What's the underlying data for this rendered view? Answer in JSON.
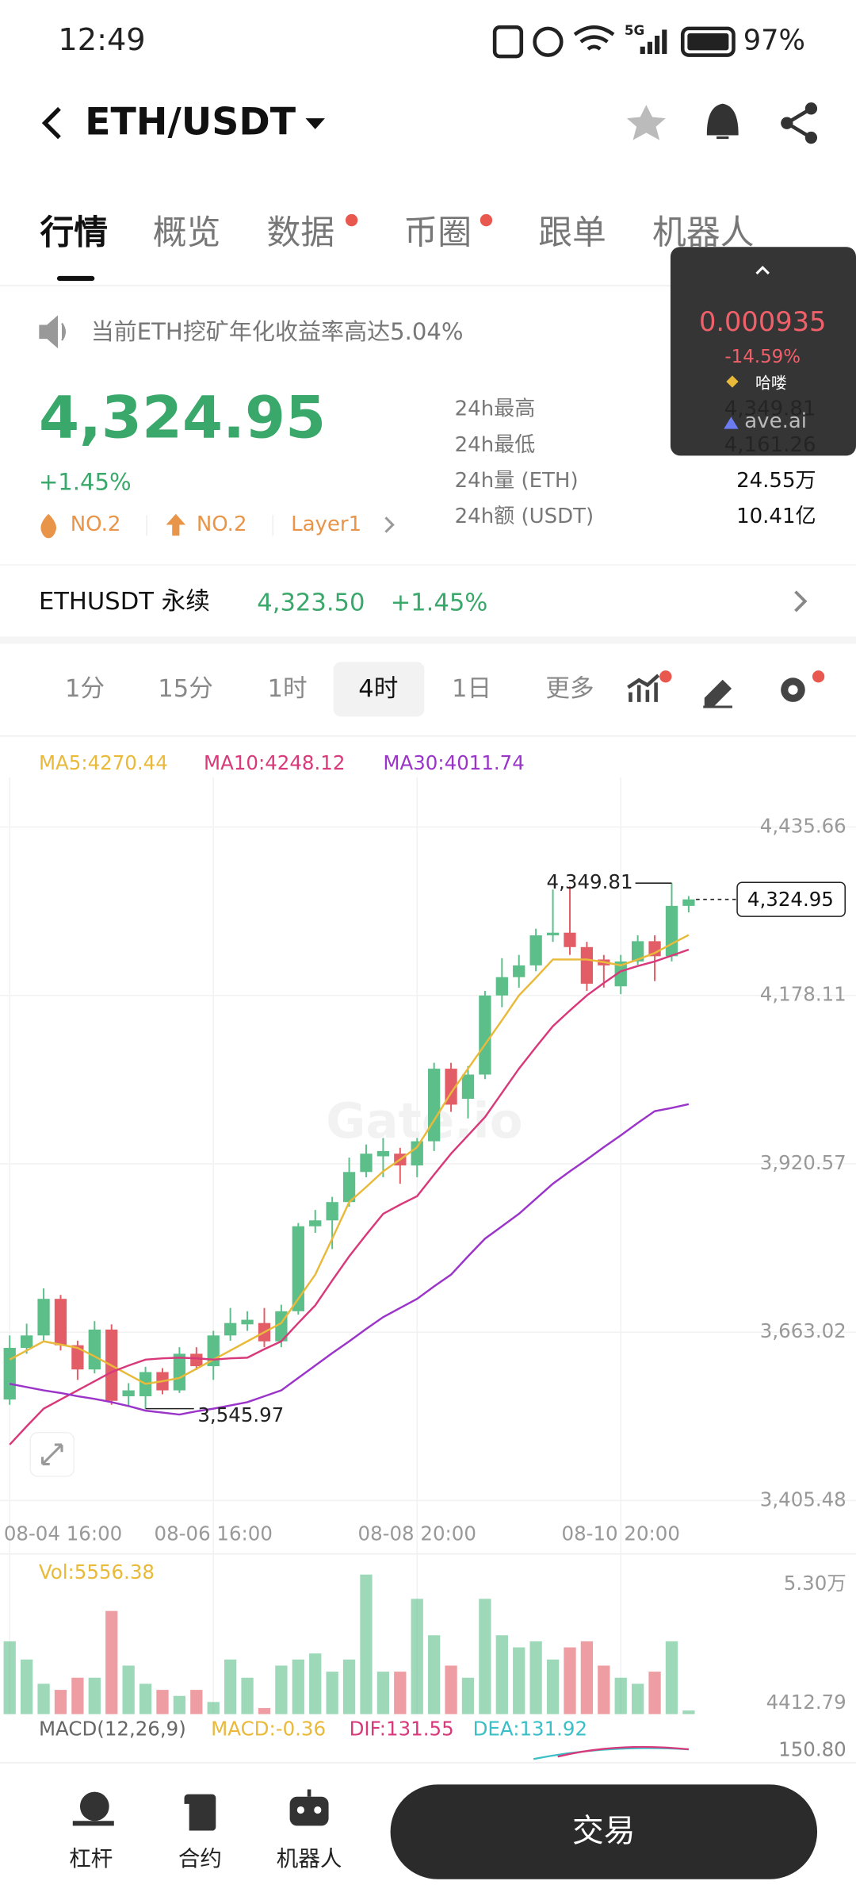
{
  "status_bar": {
    "time": "12:49",
    "network": "5G",
    "battery": "97%"
  },
  "header": {
    "pair": "ETH/USDT"
  },
  "tabs": [
    "行情",
    "概览",
    "数据",
    "币圈",
    "跟单",
    "机器人"
  ],
  "notice": "当前ETH挖矿年化收益率高达5.04%",
  "popup": {
    "price": "0.000935",
    "change": "-14.59%",
    "tag": "哈喽",
    "source": "ave.ai"
  },
  "price": {
    "last": "4,324.95",
    "change": "+1.45%",
    "badges": [
      "NO.2",
      "NO.2",
      "Layer1"
    ]
  },
  "stats": [
    {
      "label": "24h最高",
      "value": "4,349.81"
    },
    {
      "label": "24h最低",
      "value": "4,161.26"
    },
    {
      "label": "24h量 (ETH)",
      "value": "24.55万"
    },
    {
      "label": "24h额 (USDT)",
      "value": "10.41亿"
    }
  ],
  "perpetual": {
    "name": "ETHUSDT 永续",
    "price": "4,323.50",
    "change": "+1.45%"
  },
  "intervals": [
    "1分",
    "15分",
    "1时",
    "4时",
    "1日",
    "更多"
  ],
  "ma_labels": [
    "MA5:4270.44",
    "MA10:4248.12",
    "MA30:4011.74"
  ],
  "watermark": "Gate.io",
  "chart_data": {
    "type": "candlestick",
    "candles": [
      {
        "open": 3560,
        "high": 3658,
        "low": 3552,
        "close": 3639
      },
      {
        "open": 3639,
        "high": 3676,
        "low": 3630,
        "close": 3658
      },
      {
        "open": 3658,
        "high": 3730,
        "low": 3650,
        "close": 3714
      },
      {
        "open": 3714,
        "high": 3720,
        "low": 3635,
        "close": 3643
      },
      {
        "open": 3643,
        "high": 3650,
        "low": 3590,
        "close": 3606
      },
      {
        "open": 3606,
        "high": 3680,
        "low": 3600,
        "close": 3667
      },
      {
        "open": 3667,
        "high": 3675,
        "low": 3552,
        "close": 3558
      },
      {
        "open": 3565,
        "high": 3585,
        "low": 3550,
        "close": 3574
      },
      {
        "open": 3565,
        "high": 3610,
        "low": 3545.97,
        "close": 3602
      },
      {
        "open": 3602,
        "high": 3608,
        "low": 3568,
        "close": 3574
      },
      {
        "open": 3574,
        "high": 3640,
        "low": 3570,
        "close": 3630
      },
      {
        "open": 3630,
        "high": 3640,
        "low": 3605,
        "close": 3611
      },
      {
        "open": 3611,
        "high": 3665,
        "low": 3590,
        "close": 3658
      },
      {
        "open": 3658,
        "high": 3700,
        "low": 3650,
        "close": 3677
      },
      {
        "open": 3675,
        "high": 3695,
        "low": 3665,
        "close": 3682
      },
      {
        "open": 3677,
        "high": 3700,
        "low": 3640,
        "close": 3649
      },
      {
        "open": 3649,
        "high": 3705,
        "low": 3640,
        "close": 3695
      },
      {
        "open": 3695,
        "high": 3830,
        "low": 3690,
        "close": 3825
      },
      {
        "open": 3825,
        "high": 3850,
        "low": 3815,
        "close": 3834
      },
      {
        "open": 3834,
        "high": 3870,
        "low": 3790,
        "close": 3862
      },
      {
        "open": 3862,
        "high": 3930,
        "low": 3855,
        "close": 3908
      },
      {
        "open": 3908,
        "high": 3950,
        "low": 3900,
        "close": 3936
      },
      {
        "open": 3932,
        "high": 3960,
        "low": 3900,
        "close": 3940
      },
      {
        "open": 3936,
        "high": 3945,
        "low": 3890,
        "close": 3918
      },
      {
        "open": 3918,
        "high": 3960,
        "low": 3900,
        "close": 3955
      },
      {
        "open": 3955,
        "high": 4075,
        "low": 3940,
        "close": 4066
      },
      {
        "open": 4066,
        "high": 4075,
        "low": 4000,
        "close": 4011
      },
      {
        "open": 4020,
        "high": 4070,
        "low": 3990,
        "close": 4057
      },
      {
        "open": 4057,
        "high": 4185,
        "low": 4050,
        "close": 4178
      },
      {
        "open": 4178,
        "high": 4235,
        "low": 4160,
        "close": 4206
      },
      {
        "open": 4206,
        "high": 4240,
        "low": 4190,
        "close": 4224
      },
      {
        "open": 4224,
        "high": 4280,
        "low": 4215,
        "close": 4270
      },
      {
        "open": 4270,
        "high": 4340,
        "low": 4260,
        "close": 4274
      },
      {
        "open": 4274,
        "high": 4345,
        "low": 4240,
        "close": 4252
      },
      {
        "open": 4252,
        "high": 4260,
        "low": 4185,
        "close": 4196
      },
      {
        "open": 4233,
        "high": 4240,
        "low": 4190,
        "close": 4224
      },
      {
        "open": 4192,
        "high": 4240,
        "low": 4180,
        "close": 4230
      },
      {
        "open": 4230,
        "high": 4270,
        "low": 4225,
        "close": 4261
      },
      {
        "open": 4261,
        "high": 4270,
        "low": 4200,
        "close": 4238
      },
      {
        "open": 4238,
        "high": 4349.81,
        "low": 4230,
        "close": 4315
      },
      {
        "open": 4315,
        "high": 4330,
        "low": 4305,
        "close": 4324.95
      }
    ],
    "ma": [
      {
        "name": "MA5",
        "color": "#e9b93a",
        "values": [
          3621,
          3635,
          3649,
          3644,
          3639,
          3626,
          3612,
          3598,
          3584,
          3588,
          3593,
          3607,
          3621,
          3635,
          3649,
          3663,
          3677,
          3714,
          3751,
          3806,
          3862,
          3885,
          3909,
          3927,
          3946,
          3987,
          4029,
          4066,
          4103,
          4140,
          4178,
          4205,
          4233,
          4233,
          4233,
          4229,
          4224,
          4233,
          4243,
          4257,
          4270.44
        ]
      },
      {
        "name": "MA10",
        "color": "#d8397a",
        "values": [
          3491,
          3519,
          3546,
          3560,
          3574,
          3588,
          3602,
          3612,
          3621,
          3623,
          3624,
          3623,
          3621,
          3623,
          3624,
          3637,
          3649,
          3677,
          3704,
          3742,
          3779,
          3812,
          3844,
          3858,
          3871,
          3904,
          3936,
          3964,
          3992,
          4029,
          4066,
          4099,
          4131,
          4155,
          4178,
          4197,
          4215,
          4223,
          4230,
          4239,
          4248.12
        ]
      },
      {
        "name": "MA30",
        "color": "#9b34c8",
        "values": [
          3584,
          3579,
          3574,
          3570,
          3565,
          3561,
          3556,
          3550,
          3543,
          3540,
          3537,
          3542,
          3546,
          3551,
          3556,
          3565,
          3574,
          3593,
          3612,
          3631,
          3649,
          3668,
          3686,
          3700,
          3714,
          3733,
          3751,
          3779,
          3806,
          3825,
          3844,
          3867,
          3890,
          3909,
          3927,
          3946,
          3964,
          3983,
          4001,
          4006,
          4011.74
        ]
      }
    ],
    "up_color": "#5cbf8a",
    "down_color": "#e35d66",
    "ylim": [
      3405.48,
      4511.76
    ],
    "yticks": [
      {
        "value": 3405.48,
        "label": "3,405.48"
      },
      {
        "value": 3663.02,
        "label": "3,663.02"
      },
      {
        "value": 3920.57,
        "label": "3,920.57"
      },
      {
        "value": 4178.11,
        "label": "4,178.11"
      },
      {
        "value": 4435.66,
        "label": "4,435.66"
      }
    ],
    "xticks": [
      {
        "value": 0,
        "label": "08-04 16:00"
      },
      {
        "value": 12,
        "label": "08-06 16:00"
      },
      {
        "value": 24,
        "label": "08-08 20:00"
      },
      {
        "value": 36,
        "label": "08-10 20:00"
      }
    ],
    "high_label": "4,349.81",
    "low_label": "3,545.97",
    "last_label": "4,324.95",
    "volume": {
      "label": "Vol:5556.38",
      "values": [
        29760,
        22320,
        12400,
        9920,
        14880,
        14880,
        42160,
        19840,
        12400,
        9920,
        7440,
        9920,
        4960,
        22320,
        14880,
        2480,
        19840,
        22320,
        24800,
        17360,
        22320,
        57040,
        17360,
        17360,
        47120,
        32240,
        19840,
        14880,
        47120,
        32240,
        27280,
        29760,
        22320,
        27280,
        29760,
        19840,
        14880,
        12400,
        17360,
        29760,
        1488
      ],
      "ylim": [
        0,
        60500
      ],
      "yticks": [
        {
          "value": 4412.79,
          "label": "4412.79"
        },
        {
          "value": 53000,
          "label": "5.30万"
        }
      ]
    },
    "macd": {
      "params": "MACD(12,26,9)",
      "macd": "MACD:-0.36",
      "dif": "DIF:131.55",
      "dea": "DEA:131.92",
      "tick": "150.80"
    }
  },
  "bottom_nav": {
    "items": [
      "杠杆",
      "合约",
      "机器人"
    ],
    "button": "交易"
  }
}
